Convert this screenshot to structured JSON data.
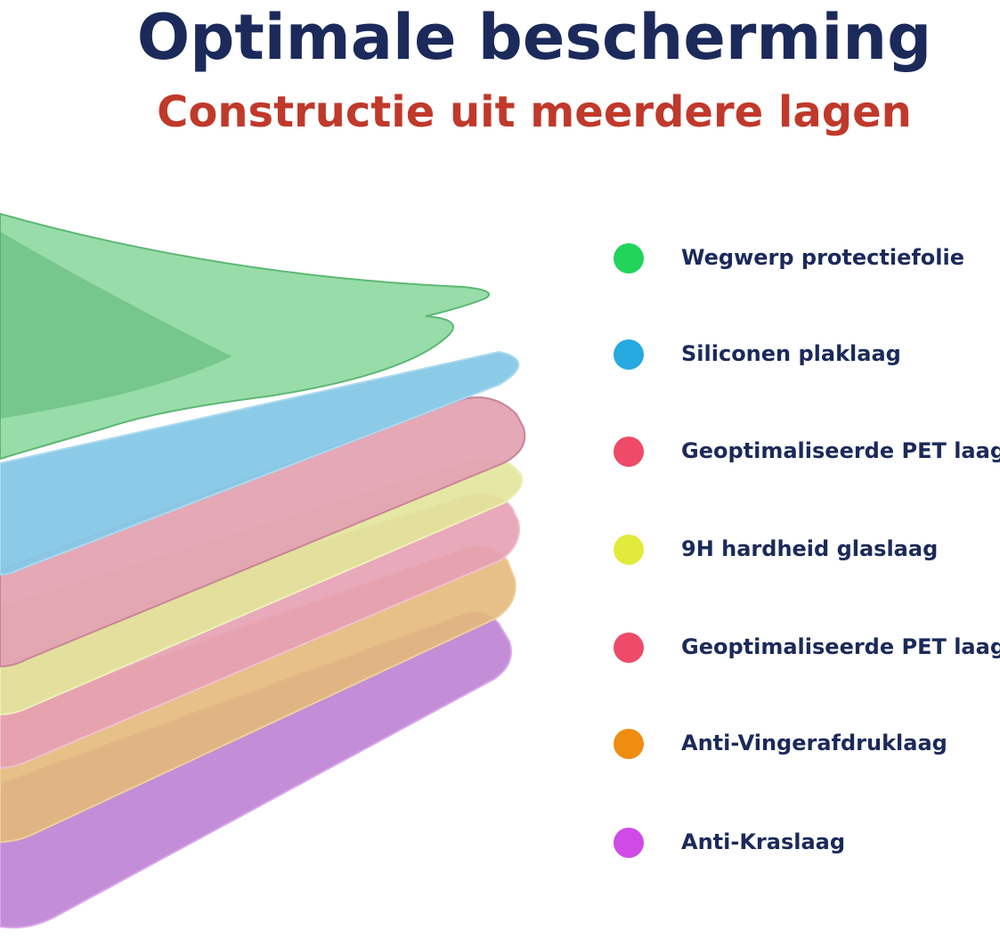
{
  "header": {
    "title": "Optimale bescherming",
    "subtitle": "Constructie uit meerdere lagen"
  },
  "layers": [
    {
      "label": "Wegwerp protectiefolie",
      "color": "#22d45a"
    },
    {
      "label": "Siliconen plaklaag",
      "color": "#27a9e1"
    },
    {
      "label": "Geoptimaliseerde PET laag",
      "color": "#ef4a68"
    },
    {
      "label": "9H hardheid glaslaag",
      "color": "#e2ea3c"
    },
    {
      "label": "Geoptimaliseerde PET laag",
      "color": "#ef4a68"
    },
    {
      "label": "Anti-Vingerafdruklaag",
      "color": "#f08c10"
    },
    {
      "label": "Anti-Kraslaag",
      "color": "#d04ae6"
    }
  ]
}
